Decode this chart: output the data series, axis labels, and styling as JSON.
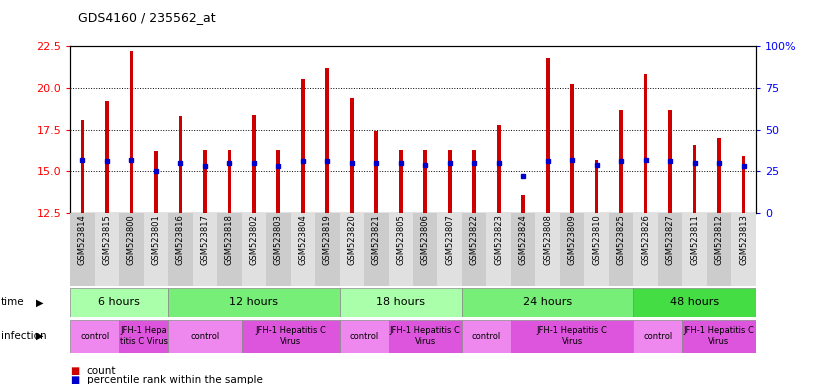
{
  "title": "GDS4160 / 235562_at",
  "samples": [
    "GSM523814",
    "GSM523815",
    "GSM523800",
    "GSM523801",
    "GSM523816",
    "GSM523817",
    "GSM523818",
    "GSM523802",
    "GSM523803",
    "GSM523804",
    "GSM523819",
    "GSM523820",
    "GSM523821",
    "GSM523805",
    "GSM523806",
    "GSM523807",
    "GSM523822",
    "GSM523823",
    "GSM523824",
    "GSM523808",
    "GSM523809",
    "GSM523810",
    "GSM523825",
    "GSM523826",
    "GSM523827",
    "GSM523811",
    "GSM523812",
    "GSM523813"
  ],
  "counts": [
    18.1,
    19.2,
    22.2,
    16.2,
    18.3,
    16.3,
    16.3,
    18.4,
    16.3,
    20.5,
    21.2,
    19.4,
    17.4,
    16.3,
    16.3,
    16.3,
    16.3,
    17.8,
    13.6,
    21.8,
    20.2,
    15.7,
    18.7,
    20.8,
    18.7,
    16.6,
    17.0,
    15.9
  ],
  "percentiles": [
    32,
    31,
    32,
    25,
    30,
    28,
    30,
    30,
    28,
    31,
    31,
    30,
    30,
    30,
    29,
    30,
    30,
    30,
    22,
    31,
    32,
    29,
    31,
    32,
    31,
    30,
    30,
    28
  ],
  "y_min": 12.5,
  "y_max": 22.5,
  "y_ticks": [
    12.5,
    15.0,
    17.5,
    20.0,
    22.5
  ],
  "y2_ticks": [
    0,
    25,
    50,
    75,
    100
  ],
  "bar_color": "#CC0000",
  "percentile_color": "#0000CC",
  "time_groups": [
    {
      "label": "6 hours",
      "start": 0,
      "end": 4,
      "color": "#aaffaa"
    },
    {
      "label": "12 hours",
      "start": 4,
      "end": 11,
      "color": "#77ee77"
    },
    {
      "label": "18 hours",
      "start": 11,
      "end": 16,
      "color": "#aaffaa"
    },
    {
      "label": "24 hours",
      "start": 16,
      "end": 23,
      "color": "#77ee77"
    },
    {
      "label": "48 hours",
      "start": 23,
      "end": 28,
      "color": "#44dd44"
    }
  ],
  "infection_groups": [
    {
      "label": "control",
      "start": 0,
      "end": 2,
      "color": "#ee88ee"
    },
    {
      "label": "JFH-1 Hepa\ntitis C Virus",
      "start": 2,
      "end": 4,
      "color": "#dd55dd"
    },
    {
      "label": "control",
      "start": 4,
      "end": 7,
      "color": "#ee88ee"
    },
    {
      "label": "JFH-1 Hepatitis C\nVirus",
      "start": 7,
      "end": 11,
      "color": "#dd55dd"
    },
    {
      "label": "control",
      "start": 11,
      "end": 13,
      "color": "#ee88ee"
    },
    {
      "label": "JFH-1 Hepatitis C\nVirus",
      "start": 13,
      "end": 16,
      "color": "#dd55dd"
    },
    {
      "label": "control",
      "start": 16,
      "end": 18,
      "color": "#ee88ee"
    },
    {
      "label": "JFH-1 Hepatitis C\nVirus",
      "start": 18,
      "end": 23,
      "color": "#dd55dd"
    },
    {
      "label": "control",
      "start": 23,
      "end": 25,
      "color": "#ee88ee"
    },
    {
      "label": "JFH-1 Hepatitis C\nVirus",
      "start": 25,
      "end": 28,
      "color": "#dd55dd"
    }
  ],
  "legend_items": [
    {
      "color": "#CC0000",
      "label": "count"
    },
    {
      "color": "#0000CC",
      "label": "percentile rank within the sample"
    }
  ],
  "fig_bg": "#ffffff"
}
